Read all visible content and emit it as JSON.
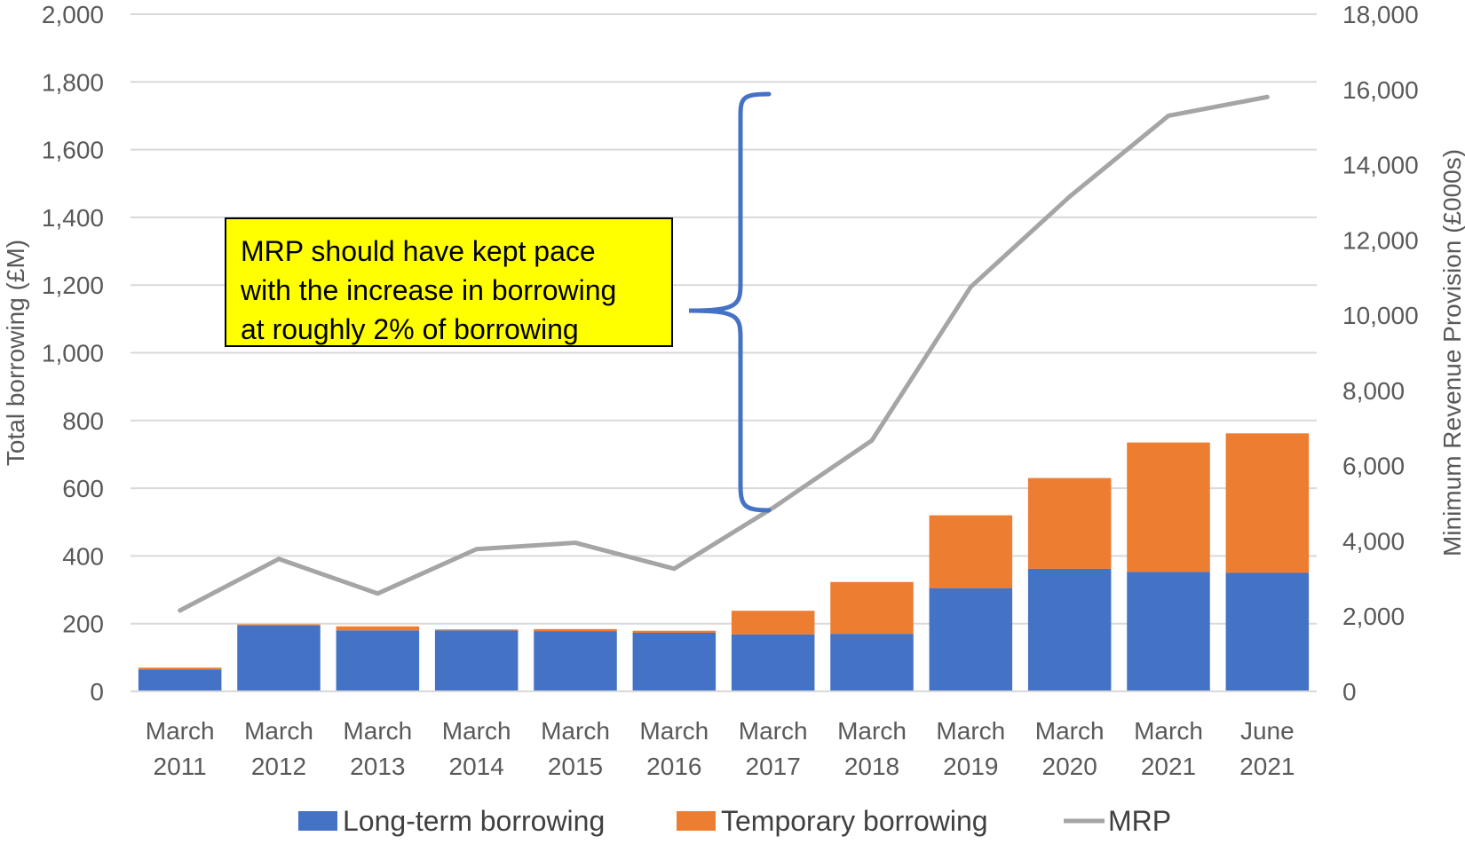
{
  "colors": {
    "long_term": "#4472c4",
    "temporary": "#ed7d31",
    "mrp": "#a5a5a5",
    "brace": "#4472c4",
    "annotation_bg": "#ffff00",
    "gridline": "#d9d9d9",
    "text": "#595959"
  },
  "annotation": {
    "lines": [
      "MRP should have kept pace",
      "with the increase in borrowing",
      "at roughly 2% of borrowing"
    ],
    "icon": "curly-brace"
  },
  "chart_data": {
    "type": "bar",
    "stacked": true,
    "categories": [
      [
        "March",
        "2011"
      ],
      [
        "March",
        "2012"
      ],
      [
        "March",
        "2013"
      ],
      [
        "March",
        "2014"
      ],
      [
        "March",
        "2015"
      ],
      [
        "March",
        "2016"
      ],
      [
        "March",
        "2017"
      ],
      [
        "March",
        "2018"
      ],
      [
        "March",
        "2019"
      ],
      [
        "March",
        "2020"
      ],
      [
        "March",
        "2021"
      ],
      [
        "June",
        "2021"
      ]
    ],
    "ylabel": "Total borrowing (£M)",
    "y2label": "Minimum Revenue Provision (£000s)",
    "ylim": [
      0,
      2000
    ],
    "y2lim": [
      0,
      18000
    ],
    "yticks": [
      "0",
      "200",
      "400",
      "600",
      "800",
      "1,000",
      "1,200",
      "1,400",
      "1,600",
      "1,800",
      "2,000"
    ],
    "y2ticks": [
      "0",
      "2,000",
      "4,000",
      "6,000",
      "8,000",
      "10,000",
      "12,000",
      "14,000",
      "16,000",
      "18,000"
    ],
    "grid": true,
    "legend_position": "bottom",
    "series": [
      {
        "name": "Long-term borrowing",
        "type": "bar",
        "axis": "left",
        "values": [
          65,
          195,
          180,
          180,
          178,
          173,
          168,
          170,
          305,
          362,
          353,
          350
        ]
      },
      {
        "name": "Temporary borrowing",
        "type": "bar",
        "axis": "left",
        "values": [
          5,
          3,
          12,
          3,
          6,
          6,
          70,
          153,
          215,
          268,
          382,
          412
        ]
      },
      {
        "name": "MRP",
        "type": "line",
        "axis": "right",
        "values": [
          2150,
          3520,
          2600,
          3780,
          3950,
          3260,
          4880,
          6670,
          10750,
          13150,
          15300,
          15800
        ]
      }
    ]
  }
}
